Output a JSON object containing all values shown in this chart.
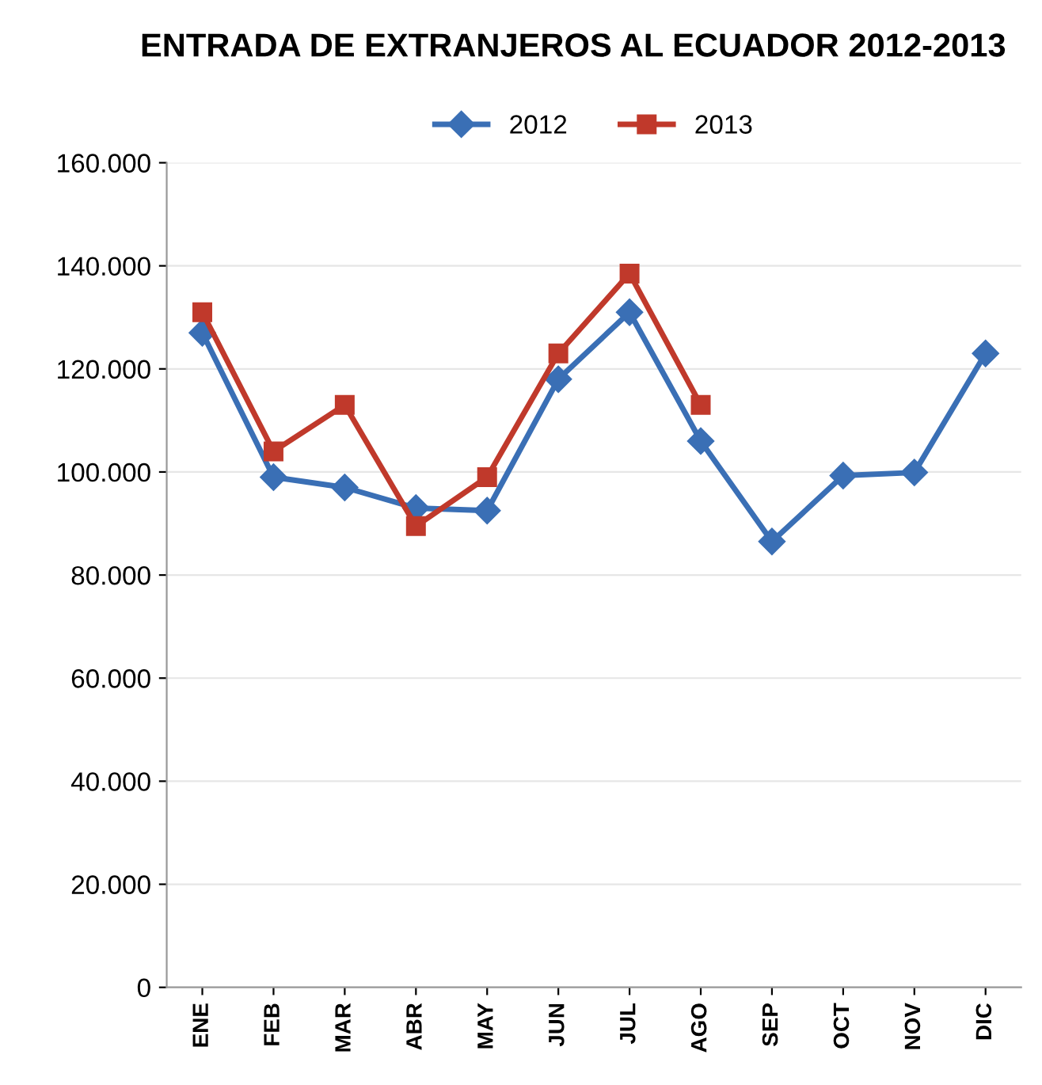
{
  "chart_data": {
    "type": "line",
    "title": "ENTRADA DE EXTRANJEROS AL ECUADOR 2012-2013",
    "categories": [
      "ENE",
      "FEB",
      "MAR",
      "ABR",
      "MAY",
      "JUN",
      "JUL",
      "AGO",
      "SEP",
      "OCT",
      "NOV",
      "DIC"
    ],
    "series": [
      {
        "name": "2012",
        "color": "#3a6fb5",
        "marker": "diamond",
        "values": [
          127000,
          99000,
          97000,
          93000,
          92500,
          118000,
          131000,
          106000,
          86500,
          99300,
          99900,
          123000
        ]
      },
      {
        "name": "2013",
        "color": "#c0392b",
        "marker": "square",
        "values": [
          131000,
          104000,
          113000,
          89500,
          99000,
          123000,
          138500,
          113000,
          null,
          null,
          null,
          null
        ]
      }
    ],
    "ylim": [
      0,
      160000
    ],
    "yticks": [
      0,
      {
        "value": 20000,
        "label": "20.000"
      },
      {
        "value": 40000,
        "label": "40.000"
      },
      {
        "value": 60000,
        "label": "60.000"
      },
      {
        "value": 80000,
        "label": "80.000"
      },
      {
        "value": 100000,
        "label": "100.000"
      },
      {
        "value": 120000,
        "label": "120.000"
      },
      {
        "value": 140000,
        "label": "140.000"
      },
      {
        "value": 160000,
        "label": "160.000"
      }
    ],
    "grid": "y",
    "legend": "top",
    "line_style": "solid"
  }
}
